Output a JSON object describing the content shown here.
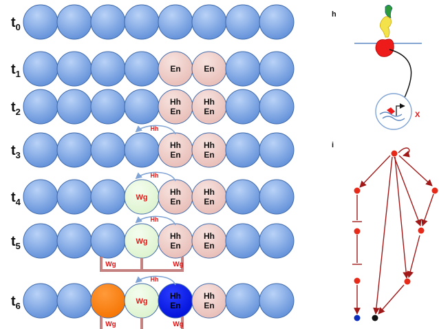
{
  "rows": [
    {
      "time_sub": "0",
      "cells": [
        "",
        "",
        "",
        "",
        "",
        "",
        "",
        ""
      ]
    },
    {
      "time_sub": "1",
      "cells": [
        "",
        "",
        "",
        "",
        "En",
        "En",
        "",
        ""
      ]
    },
    {
      "time_sub": "2",
      "cells": [
        "",
        "",
        "",
        "",
        "Hh\nEn",
        "Hh\nEn",
        "",
        ""
      ]
    },
    {
      "time_sub": "3",
      "cells": [
        "",
        "",
        "",
        "",
        "Hh\nEn",
        "Hh\nEn",
        "",
        ""
      ],
      "hh_arc": "Hh"
    },
    {
      "time_sub": "4",
      "cells": [
        "",
        "",
        "",
        "Wg",
        "Hh\nEn",
        "Hh\nEn",
        "",
        ""
      ],
      "hh_arc": "Hh"
    },
    {
      "time_sub": "5",
      "cells": [
        "",
        "",
        "",
        "Wg",
        "Hh\nEn",
        "Hh\nEn",
        "",
        ""
      ],
      "hh_arc": "Hh",
      "wg_left": "Wg",
      "wg_right": "Wg"
    },
    {
      "time_sub": "6",
      "cells": [
        "",
        "",
        "",
        "Wg",
        "Hh\nEn",
        "Hh\nEn",
        "",
        ""
      ],
      "hh_arc": "Hh",
      "wg_left": "Wg",
      "wg_right": "Wg"
    }
  ],
  "time_letter": "t",
  "panel_h": {
    "label": "h",
    "x_mark": "X"
  },
  "panel_i": {
    "label": "i"
  },
  "colors": {
    "default_cell": "#6f9be0",
    "pink_cell": "#efc9c3",
    "green_cell": "#e6f8d9",
    "orange_cell": "#ff7f0a",
    "blue_cell": "#0a1ef0",
    "label_red": "#ee1111",
    "bracket": "#c58080",
    "arc": "#7fa3d4",
    "network": "#a01818"
  }
}
